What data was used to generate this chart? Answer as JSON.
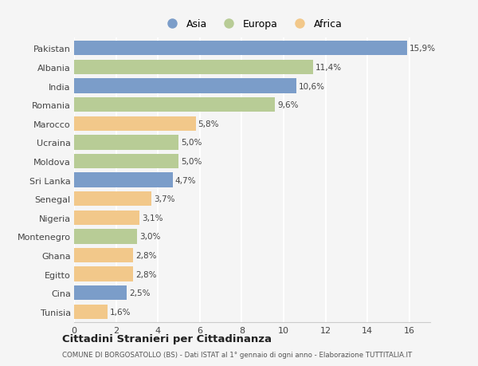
{
  "countries": [
    "Pakistan",
    "Albania",
    "India",
    "Romania",
    "Marocco",
    "Ucraina",
    "Moldova",
    "Sri Lanka",
    "Senegal",
    "Nigeria",
    "Montenegro",
    "Ghana",
    "Egitto",
    "Cina",
    "Tunisia"
  ],
  "values": [
    15.9,
    11.4,
    10.6,
    9.6,
    5.8,
    5.0,
    5.0,
    4.7,
    3.7,
    3.1,
    3.0,
    2.8,
    2.8,
    2.5,
    1.6
  ],
  "labels": [
    "15,9%",
    "11,4%",
    "10,6%",
    "9,6%",
    "5,8%",
    "5,0%",
    "5,0%",
    "4,7%",
    "3,7%",
    "3,1%",
    "3,0%",
    "2,8%",
    "2,8%",
    "2,5%",
    "1,6%"
  ],
  "continents": [
    "Asia",
    "Europa",
    "Asia",
    "Europa",
    "Africa",
    "Europa",
    "Europa",
    "Asia",
    "Africa",
    "Africa",
    "Europa",
    "Africa",
    "Africa",
    "Asia",
    "Africa"
  ],
  "colors": {
    "Asia": "#7b9dc9",
    "Europa": "#b8cc96",
    "Africa": "#f2c88a"
  },
  "xlim": [
    0,
    17
  ],
  "xticks": [
    0,
    2,
    4,
    6,
    8,
    10,
    12,
    14,
    16
  ],
  "title": "Cittadini Stranieri per Cittadinanza",
  "subtitle": "COMUNE DI BORGOSATOLLO (BS) - Dati ISTAT al 1° gennaio di ogni anno - Elaborazione TUTTITALIA.IT",
  "background_color": "#f5f5f5",
  "grid_color": "#ffffff",
  "bar_height": 0.78,
  "label_fontsize": 7.5,
  "ytick_fontsize": 8.0,
  "xtick_fontsize": 8.0
}
